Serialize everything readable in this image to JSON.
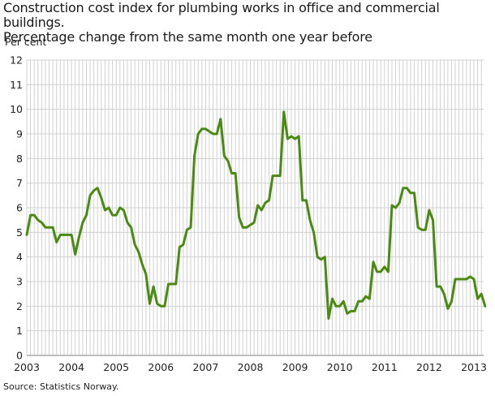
{
  "title": {
    "line1": "Construction cost index for plumbing works in office and commercial buildings.",
    "line2": "Percentage change from the same month one year before"
  },
  "y_axis_label": "Per cent",
  "source": "Source: Statistics Norway.",
  "colors": {
    "line": "#4a8a12",
    "grid": "#d0d0d0",
    "axis": "#aaaaaa"
  },
  "chart_data": {
    "type": "line",
    "title": "Construction cost index for plumbing works in office and commercial buildings. Percentage change from the same month one year before",
    "xlabel": "",
    "ylabel": "Per cent",
    "ylim": [
      0,
      12
    ],
    "yticks": [
      0,
      1,
      2,
      3,
      4,
      5,
      6,
      7,
      8,
      9,
      10,
      11,
      12
    ],
    "xticks": [
      "2003",
      "2004",
      "2005",
      "2006",
      "2007",
      "2008",
      "2009",
      "2010",
      "2011",
      "2012",
      "2013"
    ],
    "grid": true,
    "legend": "none",
    "x_start": "2003-01",
    "frequency": "monthly",
    "series": [
      {
        "name": "Plumbing works, office and commercial buildings",
        "values": [
          4.9,
          5.7,
          5.7,
          5.5,
          5.4,
          5.2,
          5.2,
          5.2,
          4.6,
          4.9,
          4.9,
          4.9,
          4.9,
          4.1,
          4.8,
          5.4,
          5.7,
          6.5,
          6.7,
          6.8,
          6.4,
          5.9,
          6.0,
          5.7,
          5.7,
          6.0,
          5.9,
          5.4,
          5.2,
          4.5,
          4.2,
          3.7,
          3.3,
          2.1,
          2.8,
          2.1,
          2.0,
          2.0,
          2.9,
          2.9,
          2.9,
          4.4,
          4.5,
          5.1,
          5.2,
          8.1,
          9.0,
          9.2,
          9.2,
          9.1,
          9.0,
          9.0,
          9.6,
          8.1,
          7.9,
          7.4,
          7.4,
          5.6,
          5.2,
          5.2,
          5.3,
          5.4,
          6.1,
          5.9,
          6.2,
          6.3,
          7.3,
          7.3,
          7.3,
          9.9,
          8.8,
          8.9,
          8.8,
          8.9,
          6.3,
          6.3,
          5.5,
          5.0,
          4.0,
          3.9,
          4.0,
          1.5,
          2.3,
          2.0,
          2.0,
          2.2,
          1.7,
          1.8,
          1.8,
          2.2,
          2.2,
          2.4,
          2.3,
          3.8,
          3.4,
          3.4,
          3.6,
          3.4,
          6.1,
          6.0,
          6.2,
          6.8,
          6.8,
          6.6,
          6.6,
          5.2,
          5.1,
          5.1,
          5.9,
          5.5,
          2.8,
          2.8,
          2.5,
          1.9,
          2.2,
          3.1,
          3.1,
          3.1,
          3.1,
          3.2,
          3.1,
          2.3,
          2.5,
          2.0
        ]
      }
    ]
  }
}
